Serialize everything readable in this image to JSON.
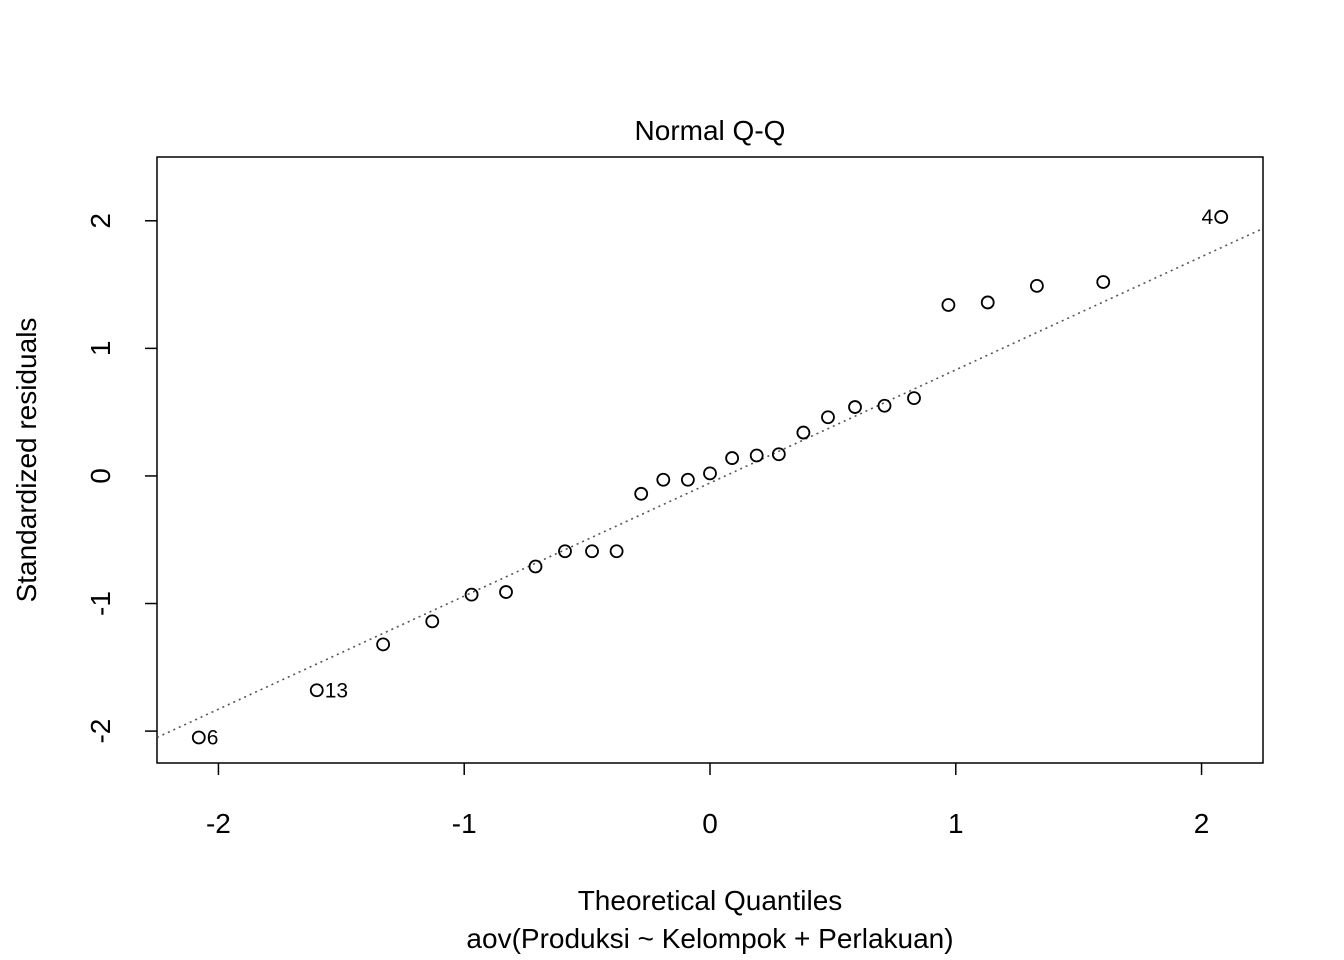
{
  "chart_data": {
    "type": "scatter",
    "title": "Normal Q-Q",
    "xlabel": "Theoretical Quantiles",
    "subtitle": "aov(Produksi ~ Kelompok + Perlakuan)",
    "ylabel": "Standardized residuals",
    "xlim": [
      -2.25,
      2.25
    ],
    "ylim": [
      -2.25,
      2.5
    ],
    "xticks": [
      -2,
      -1,
      0,
      1,
      2
    ],
    "xtick_labels": [
      "-2",
      "-1",
      "0",
      "1",
      "2"
    ],
    "yticks": [
      -2,
      -1,
      0,
      1,
      2
    ],
    "ytick_labels": [
      "-2",
      "-1",
      "0",
      "1",
      "2"
    ],
    "grid": false,
    "reference_line": {
      "style": "dotted",
      "color": "#555555",
      "x": [
        -2.25,
        2.25
      ],
      "y": [
        -2.05,
        1.94
      ]
    },
    "points": [
      {
        "x": -2.08,
        "y": -2.05,
        "label": "6"
      },
      {
        "x": -1.6,
        "y": -1.68,
        "label": "13"
      },
      {
        "x": -1.33,
        "y": -1.32
      },
      {
        "x": -1.13,
        "y": -1.14
      },
      {
        "x": -0.97,
        "y": -0.93
      },
      {
        "x": -0.83,
        "y": -0.91
      },
      {
        "x": -0.71,
        "y": -0.71
      },
      {
        "x": -0.59,
        "y": -0.59
      },
      {
        "x": -0.48,
        "y": -0.59
      },
      {
        "x": -0.38,
        "y": -0.59
      },
      {
        "x": -0.28,
        "y": -0.14
      },
      {
        "x": -0.19,
        "y": -0.03
      },
      {
        "x": -0.09,
        "y": -0.03
      },
      {
        "x": 0.0,
        "y": 0.02
      },
      {
        "x": 0.09,
        "y": 0.14
      },
      {
        "x": 0.19,
        "y": 0.16
      },
      {
        "x": 0.28,
        "y": 0.17
      },
      {
        "x": 0.38,
        "y": 0.34
      },
      {
        "x": 0.48,
        "y": 0.46
      },
      {
        "x": 0.59,
        "y": 0.54
      },
      {
        "x": 0.71,
        "y": 0.55
      },
      {
        "x": 0.83,
        "y": 0.61
      },
      {
        "x": 0.97,
        "y": 1.34
      },
      {
        "x": 1.13,
        "y": 1.36
      },
      {
        "x": 1.33,
        "y": 1.49
      },
      {
        "x": 1.6,
        "y": 1.52
      },
      {
        "x": 2.08,
        "y": 2.03,
        "label": "4"
      }
    ]
  }
}
